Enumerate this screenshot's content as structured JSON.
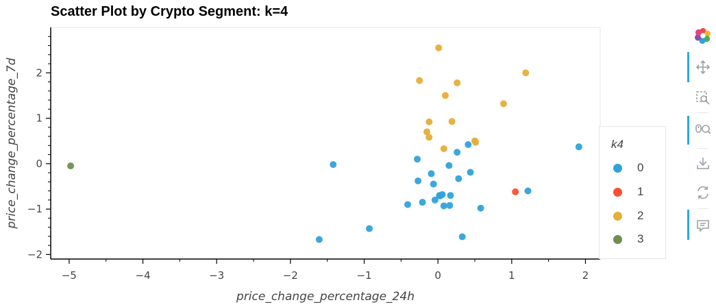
{
  "chart_data": {
    "type": "scatter",
    "title": "Scatter Plot by Crypto Segment: k=4",
    "xlabel": "price_change_percentage_24h",
    "ylabel": "price_change_percentage_7d",
    "xlim": [
      -5.25,
      2.2
    ],
    "ylim": [
      -2.1,
      3.0
    ],
    "xticks": [
      -5,
      -4,
      -3,
      -2,
      -1,
      0,
      1,
      2
    ],
    "yticks": [
      -2,
      -1,
      0,
      1,
      2
    ],
    "xtick_labels": [
      "−5",
      "−4",
      "−3",
      "−2",
      "−1",
      "0",
      "1",
      "2"
    ],
    "ytick_labels": [
      "−2",
      "−1",
      "0",
      "1",
      "2"
    ],
    "legend_title": "k4",
    "legend_position": "right",
    "series": [
      {
        "name": "0",
        "color": "#30a2da",
        "x": [
          -1.42,
          -0.28,
          -0.27,
          -0.09,
          -0.06,
          -0.21,
          -0.41,
          0.02,
          0.06,
          0.08,
          -0.04,
          0.03,
          0.15,
          0.17,
          0.16,
          0.41,
          0.26,
          0.28,
          0.44,
          0.58,
          1.22,
          1.91,
          -0.93,
          -1.61,
          0.33
        ],
        "y": [
          -0.02,
          0.1,
          -0.38,
          -0.22,
          -0.45,
          -0.85,
          -0.9,
          -0.7,
          -0.68,
          -0.93,
          -0.8,
          -0.71,
          -0.04,
          -0.7,
          -0.92,
          0.42,
          0.25,
          -0.33,
          -0.19,
          -0.98,
          -0.6,
          0.37,
          -1.43,
          -1.67,
          -1.61
        ]
      },
      {
        "name": "1",
        "color": "#fc4f30",
        "x": [
          1.05
        ],
        "y": [
          -0.62
        ]
      },
      {
        "name": "2",
        "color": "#e5ae38",
        "x": [
          0.01,
          -0.25,
          0.26,
          0.1,
          1.19,
          0.89,
          -0.12,
          0.19,
          -0.15,
          -0.12,
          0.08,
          0.5,
          0.51
        ],
        "y": [
          2.55,
          1.83,
          1.78,
          1.5,
          2.0,
          1.32,
          0.92,
          0.93,
          0.7,
          0.58,
          0.33,
          0.5,
          0.47
        ]
      },
      {
        "name": "3",
        "color": "#6d904f",
        "x": [
          -4.98
        ],
        "y": [
          -0.05
        ]
      }
    ]
  },
  "toolbar": {
    "tools": [
      "bokeh-logo-icon",
      "pan-icon",
      "box-zoom-icon",
      "wheel-zoom-icon",
      "save-icon",
      "reset-icon",
      "hover-icon"
    ]
  }
}
